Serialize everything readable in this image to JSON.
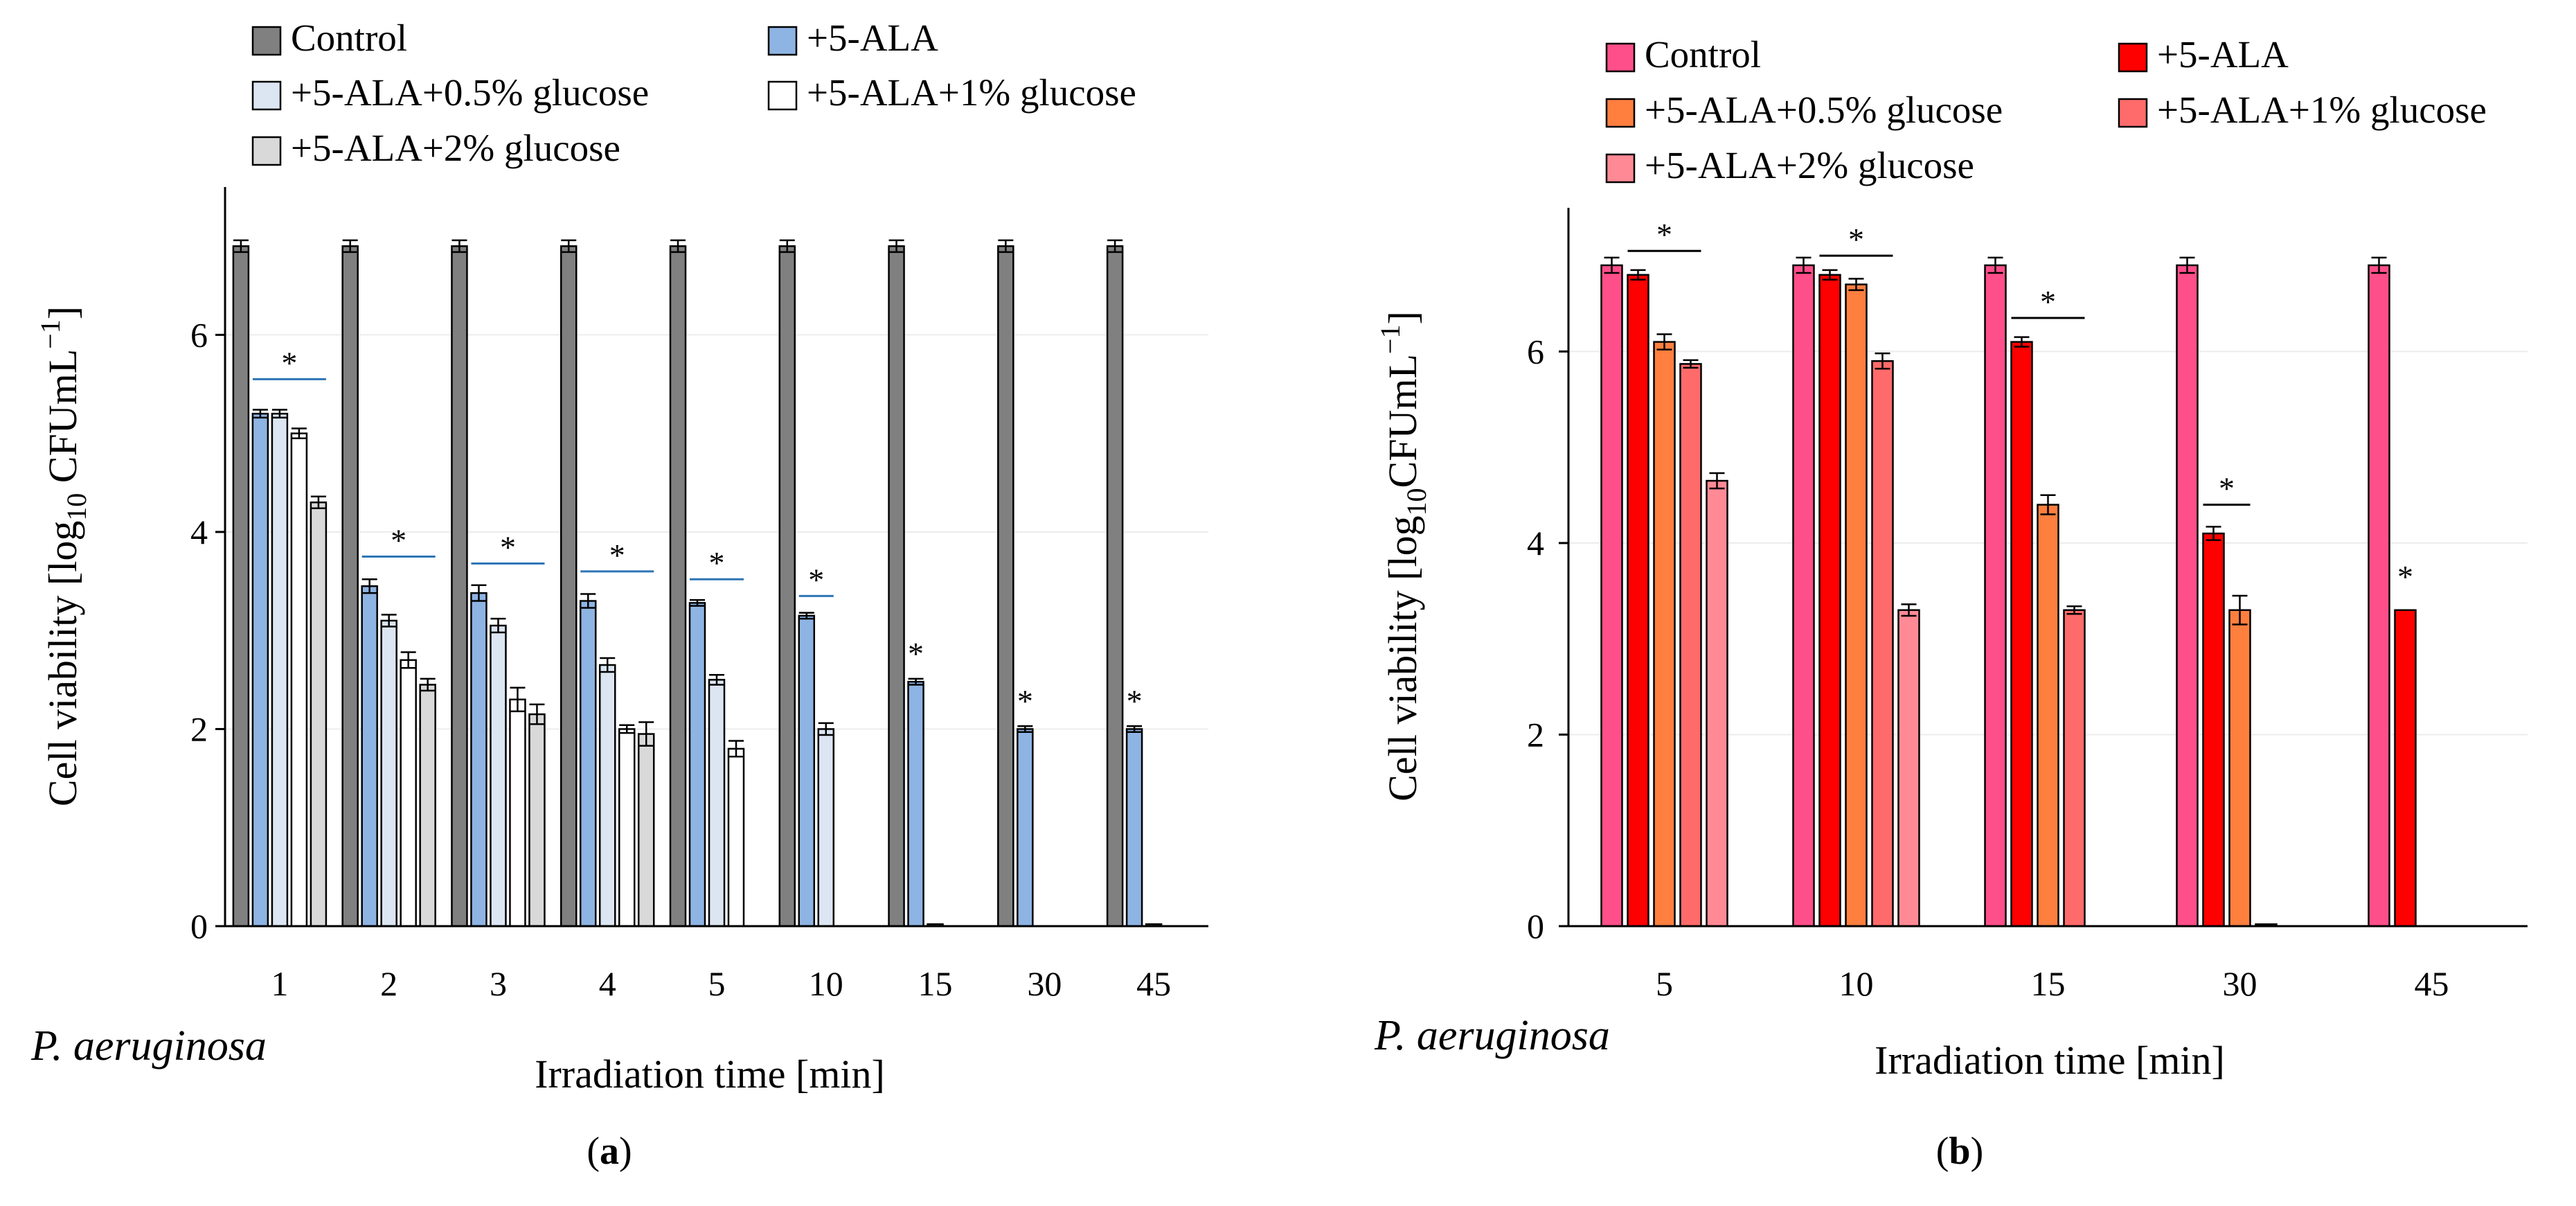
{
  "figure": {
    "species_label": "P. aeruginosa",
    "caption_prefix": "(",
    "caption_suffix": ")"
  },
  "chart_data": [
    {
      "panel": "a",
      "type": "bar",
      "caption": "a",
      "xlabel": "Irradiation time [min]",
      "ylabel_main": "Cell viability [log",
      "ylabel_sub": "10",
      "ylabel_unit": " CFUmL",
      "ylabel_exp": "−1",
      "ylabel_close": "]",
      "ylim": [
        0,
        7.5
      ],
      "yticks": [
        "0",
        "2",
        "4",
        "6"
      ],
      "categories": [
        "1",
        "2",
        "3",
        "4",
        "5",
        "10",
        "15",
        "30",
        "45"
      ],
      "series": [
        {
          "name": "Control",
          "color": "#808080",
          "values": [
            6.9,
            6.9,
            6.9,
            6.9,
            6.9,
            6.9,
            6.9,
            6.9,
            6.9
          ],
          "errors": [
            0.06,
            0.06,
            0.06,
            0.06,
            0.06,
            0.06,
            0.06,
            0.06,
            0.06
          ]
        },
        {
          "name": "+5-ALA",
          "color": "#8eb4e3",
          "values": [
            5.2,
            3.45,
            3.38,
            3.3,
            3.28,
            3.15,
            2.48,
            2.0,
            2.0
          ],
          "errors": [
            0.04,
            0.07,
            0.08,
            0.07,
            0.03,
            0.03,
            0.03,
            0.03,
            0.03
          ]
        },
        {
          "name": "+5-ALA+0.5% glucose",
          "color": "#dce6f2",
          "values": [
            5.2,
            3.1,
            3.05,
            2.65,
            2.5,
            2.0,
            0.02,
            0.0,
            0.02
          ],
          "errors": [
            0.04,
            0.06,
            0.07,
            0.07,
            0.05,
            0.06,
            0.0,
            0.0,
            0.0
          ]
        },
        {
          "name": "+5-ALA+1% glucose",
          "color": "#ffffff",
          "values": [
            5.0,
            2.7,
            2.3,
            2.0,
            1.8,
            0.0,
            0.0,
            0.0,
            0.0
          ],
          "errors": [
            0.05,
            0.08,
            0.12,
            0.04,
            0.08,
            0.0,
            0.0,
            0.0,
            0.0
          ]
        },
        {
          "name": "+5-ALA+2% glucose",
          "color": "#d9d9d9",
          "values": [
            4.3,
            2.45,
            2.15,
            1.95,
            0.0,
            0.0,
            0.0,
            0.0,
            0.0
          ],
          "errors": [
            0.06,
            0.06,
            0.1,
            0.12,
            0.0,
            0.0,
            0.0,
            0.0,
            0.0
          ]
        }
      ],
      "significance": [
        {
          "category_index": 0,
          "from_series": 1,
          "to_series": 4,
          "level": 5.55,
          "label": "*"
        },
        {
          "category_index": 1,
          "from_series": 1,
          "to_series": 4,
          "level": 3.75,
          "label": "*"
        },
        {
          "category_index": 2,
          "from_series": 1,
          "to_series": 4,
          "level": 3.68,
          "label": "*"
        },
        {
          "category_index": 3,
          "from_series": 1,
          "to_series": 4,
          "level": 3.6,
          "label": "*"
        },
        {
          "category_index": 4,
          "from_series": 1,
          "to_series": 3,
          "level": 3.52,
          "label": "*"
        },
        {
          "category_index": 5,
          "from_series": 1,
          "to_series": 2,
          "level": 3.35,
          "label": "*"
        },
        {
          "category_index": 6,
          "from_series": 1,
          "to_series": 1,
          "level": 2.6,
          "label": "*"
        },
        {
          "category_index": 7,
          "from_series": 1,
          "to_series": 1,
          "level": 2.12,
          "label": "*"
        },
        {
          "category_index": 8,
          "from_series": 1,
          "to_series": 1,
          "level": 2.12,
          "label": "*"
        }
      ],
      "sig_line_color": "#2e75b6"
    },
    {
      "panel": "b",
      "type": "bar",
      "caption": "b",
      "xlabel": "Irradiation time [min]",
      "ylabel_main": "Cell viability [log",
      "ylabel_sub": "10",
      "ylabel_unit": "CFUmL",
      "ylabel_exp": "−1",
      "ylabel_close": "]",
      "ylim": [
        0,
        7.5
      ],
      "yticks": [
        "0",
        "2",
        "4",
        "6"
      ],
      "categories": [
        "5",
        "10",
        "15",
        "30",
        "45"
      ],
      "series": [
        {
          "name": "Control",
          "color": "#ff4f8b",
          "values": [
            6.9,
            6.9,
            6.9,
            6.9,
            6.9
          ],
          "errors": [
            0.08,
            0.08,
            0.08,
            0.08,
            0.08
          ]
        },
        {
          "name": "+5-ALA",
          "color": "#ff0000",
          "values": [
            6.8,
            6.8,
            6.1,
            4.1,
            3.3
          ],
          "errors": [
            0.05,
            0.05,
            0.05,
            0.07,
            0.0
          ]
        },
        {
          "name": "+5-ALA+0.5% glucose",
          "color": "#ff7f3f",
          "values": [
            6.1,
            6.7,
            4.4,
            3.3,
            0.0
          ],
          "errors": [
            0.08,
            0.06,
            0.1,
            0.15,
            0.0
          ]
        },
        {
          "name": "+5-ALA+1% glucose",
          "color": "#ff6b6b",
          "values": [
            5.87,
            5.9,
            3.3,
            0.02,
            0.0
          ],
          "errors": [
            0.04,
            0.08,
            0.04,
            0.0,
            0.0
          ]
        },
        {
          "name": "+5-ALA+2% glucose",
          "color": "#ff8a96",
          "values": [
            4.65,
            3.3,
            0.0,
            0.0,
            0.0
          ],
          "errors": [
            0.08,
            0.06,
            0.0,
            0.0,
            0.0
          ]
        }
      ],
      "significance": [
        {
          "category_index": 0,
          "from_series": 1,
          "to_series": 3,
          "level": 7.05,
          "label": "*"
        },
        {
          "category_index": 1,
          "from_series": 1,
          "to_series": 3,
          "level": 7.0,
          "label": "*"
        },
        {
          "category_index": 2,
          "from_series": 1,
          "to_series": 3,
          "level": 6.35,
          "label": "*"
        },
        {
          "category_index": 3,
          "from_series": 1,
          "to_series": 2,
          "level": 4.4,
          "label": "*"
        },
        {
          "category_index": 4,
          "from_series": 1,
          "to_series": 1,
          "level": 3.48,
          "label": "*"
        }
      ],
      "sig_line_color": "#000000"
    }
  ]
}
